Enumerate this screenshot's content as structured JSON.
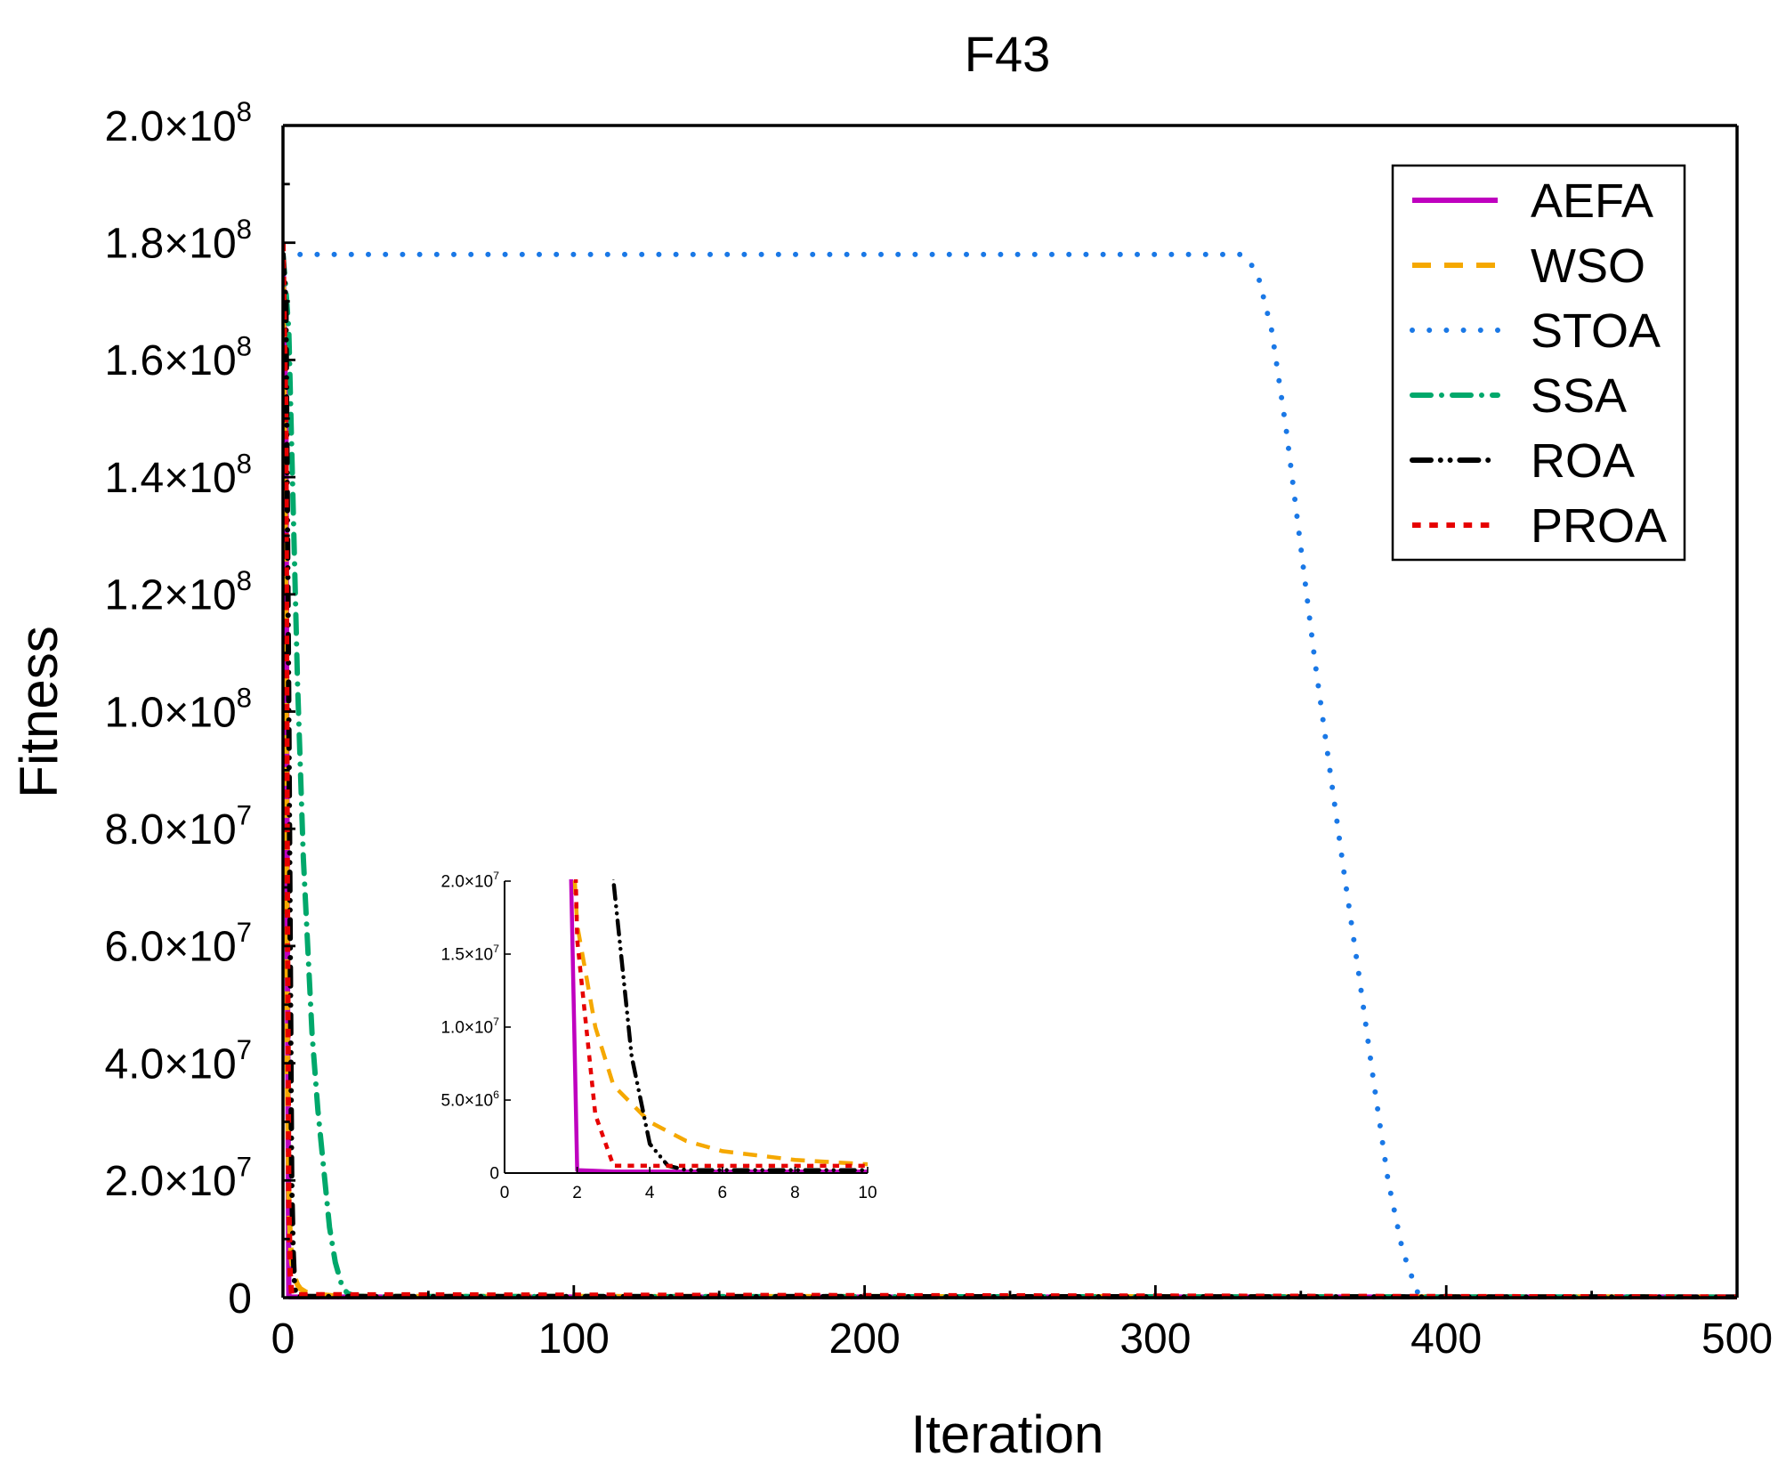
{
  "chart_data": {
    "type": "line",
    "title": "F43",
    "xlabel": "Iteration",
    "ylabel": "Fitness",
    "xlim": [
      0,
      500
    ],
    "ylim": [
      0,
      200000000
    ],
    "x_ticks": [
      {
        "value": 0,
        "label": "0"
      },
      {
        "value": 100,
        "label": "100"
      },
      {
        "value": 200,
        "label": "200"
      },
      {
        "value": 300,
        "label": "300"
      },
      {
        "value": 400,
        "label": "400"
      },
      {
        "value": 500,
        "label": "500"
      }
    ],
    "y_ticks": [
      {
        "value": 0,
        "mant": "0",
        "exp": ""
      },
      {
        "value": 20000000,
        "mant": "2.0×10",
        "exp": "7"
      },
      {
        "value": 40000000,
        "mant": "4.0×10",
        "exp": "7"
      },
      {
        "value": 60000000,
        "mant": "6.0×10",
        "exp": "7"
      },
      {
        "value": 80000000,
        "mant": "8.0×10",
        "exp": "7"
      },
      {
        "value": 100000000,
        "mant": "1.0×10",
        "exp": "8"
      },
      {
        "value": 120000000,
        "mant": "1.2×10",
        "exp": "8"
      },
      {
        "value": 140000000,
        "mant": "1.4×10",
        "exp": "8"
      },
      {
        "value": 160000000,
        "mant": "1.6×10",
        "exp": "8"
      },
      {
        "value": 180000000,
        "mant": "1.8×10",
        "exp": "8"
      },
      {
        "value": 200000000,
        "mant": "2.0×10",
        "exp": "8"
      }
    ],
    "legend_position": "top-right",
    "series": [
      {
        "name": "AEFA",
        "color": "#bf00bf",
        "dash": "solid",
        "x": [
          0,
          1,
          1.5,
          2,
          2.5,
          3,
          500
        ],
        "y": [
          178000000,
          150000000,
          60000000,
          200000,
          150000,
          100000,
          100000
        ]
      },
      {
        "name": "WSO",
        "color": "#f5a800",
        "dash": "dash",
        "x": [
          0,
          1,
          1.5,
          2,
          2.5,
          3,
          4,
          5,
          6,
          8,
          10,
          20,
          500
        ],
        "y": [
          178000000,
          120000000,
          40000000,
          17000000,
          10000000,
          6000000,
          3500000,
          2200000,
          1500000,
          900000,
          600000,
          200000,
          100000
        ]
      },
      {
        "name": "STOA",
        "color": "#1a78e6",
        "dash": "dot",
        "x": [
          0,
          330,
          335,
          340,
          345,
          350,
          355,
          360,
          365,
          370,
          375,
          380,
          385,
          390,
          395,
          500
        ],
        "y": [
          178000000,
          178000000,
          175000000,
          165000000,
          148000000,
          128000000,
          108000000,
          90000000,
          72000000,
          55000000,
          37000000,
          20000000,
          8000000,
          1000000,
          100000,
          100000
        ]
      },
      {
        "name": "SSA",
        "color": "#00a86b",
        "dash": "dashdot",
        "x": [
          0,
          1,
          2,
          3,
          4,
          5,
          6,
          7,
          8,
          9,
          10,
          12,
          14,
          16,
          18,
          20,
          22,
          25,
          500
        ],
        "y": [
          178000000,
          172000000,
          165000000,
          145000000,
          125000000,
          105000000,
          90000000,
          75000000,
          65000000,
          55000000,
          45000000,
          32000000,
          22000000,
          12000000,
          6000000,
          2500000,
          800000,
          200000,
          100000
        ]
      },
      {
        "name": "ROA",
        "color": "#000000",
        "dash": "dashdotdot",
        "x": [
          0,
          1,
          2,
          3,
          3.5,
          4,
          4.5,
          5,
          500
        ],
        "y": [
          178000000,
          170000000,
          100000000,
          20000000,
          8000000,
          2000000,
          500000,
          200000,
          100000
        ]
      },
      {
        "name": "PROA",
        "color": "#e60000",
        "dash": "shortdash",
        "x": [
          0,
          1,
          1.5,
          2,
          2.5,
          3,
          500
        ],
        "y": [
          180000000,
          150000000,
          70000000,
          16000000,
          4000000,
          500000,
          100000
        ]
      }
    ],
    "inset": {
      "xlim": [
        0,
        10
      ],
      "ylim": [
        0,
        20000000
      ],
      "x_ticks": [
        {
          "value": 0,
          "label": "0"
        },
        {
          "value": 2,
          "label": "2"
        },
        {
          "value": 4,
          "label": "4"
        },
        {
          "value": 6,
          "label": "6"
        },
        {
          "value": 8,
          "label": "8"
        },
        {
          "value": 10,
          "label": "10"
        }
      ],
      "y_ticks": [
        {
          "value": 0,
          "mant": "0",
          "exp": ""
        },
        {
          "value": 5000000,
          "mant": "5.0×10",
          "exp": "6"
        },
        {
          "value": 10000000,
          "mant": "1.0×10",
          "exp": "7"
        },
        {
          "value": 15000000,
          "mant": "1.5×10",
          "exp": "7"
        },
        {
          "value": 20000000,
          "mant": "2.0×10",
          "exp": "7"
        }
      ]
    }
  }
}
